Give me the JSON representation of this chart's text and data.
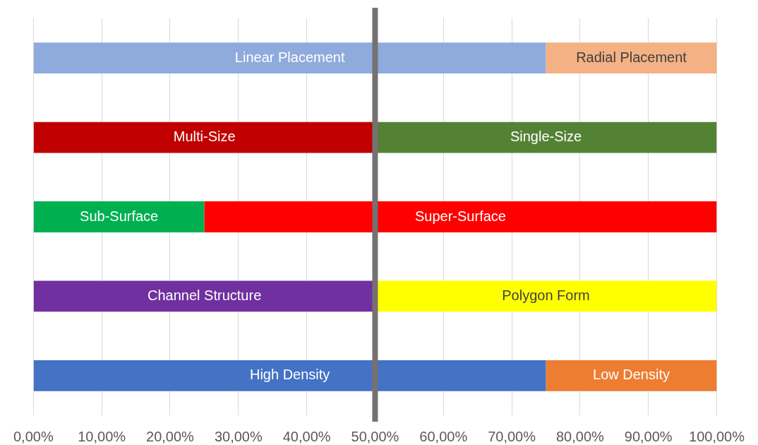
{
  "chart_data": {
    "type": "bar",
    "orientation": "horizontal",
    "stacked": true,
    "categories": [
      null,
      null,
      null,
      null,
      null
    ],
    "series": [
      {
        "colors": [
          "#8faadc",
          "#c00000",
          "#00b050",
          "#7030a0",
          "#4472c4"
        ],
        "values": [
          75,
          50,
          25,
          50,
          75
        ],
        "value_labels": [
          "Linear Placement",
          "Multi-Size",
          "Sub-Surface",
          "Channel Structure",
          "High Density"
        ]
      },
      {
        "colors": [
          "#f4b183",
          "#548235",
          "#ff0000",
          "#ffff00",
          "#ed7d31"
        ],
        "values": [
          25,
          50,
          75,
          50,
          25
        ],
        "value_labels": [
          "Radial Placement",
          "Single-Size",
          "Super-Surface",
          "Polygon Form",
          "Low Density"
        ]
      }
    ],
    "xlim": [
      0,
      100
    ],
    "xticks": [
      {
        "value": 0,
        "label": "0,00%"
      },
      {
        "value": 10,
        "label": "10,00%"
      },
      {
        "value": 20,
        "label": "20,00%"
      },
      {
        "value": 30,
        "label": "30,00%"
      },
      {
        "value": 40,
        "label": "40,00%"
      },
      {
        "value": 50,
        "label": "50,00%"
      },
      {
        "value": 60,
        "label": "60,00%"
      },
      {
        "value": 70,
        "label": "70,00%"
      },
      {
        "value": 80,
        "label": "80,00%"
      },
      {
        "value": 90,
        "label": "90,00%"
      },
      {
        "value": 100,
        "label": "100,00%"
      }
    ],
    "grid": "x",
    "legend": false,
    "tick_labels": "x",
    "ref_lines": [
      {
        "axis": "x",
        "value": 50,
        "color": "#767171"
      }
    ]
  }
}
